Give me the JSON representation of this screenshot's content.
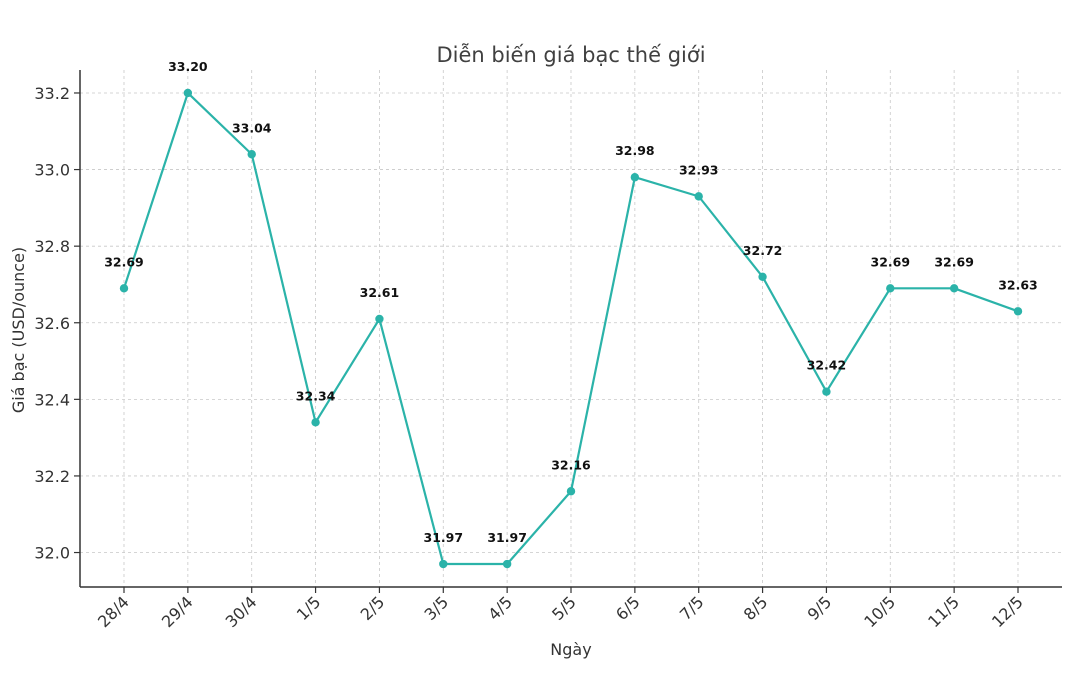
{
  "chart_data": {
    "type": "line",
    "title": "Diễn biến giá bạc thế giới",
    "xlabel": "Ngày",
    "ylabel": "Giá bạc (USD/ounce)",
    "categories": [
      "28/4",
      "29/4",
      "30/4",
      "1/5",
      "2/5",
      "3/5",
      "4/5",
      "5/5",
      "6/5",
      "7/5",
      "8/5",
      "9/5",
      "10/5",
      "11/5",
      "12/5"
    ],
    "series": [
      {
        "values": [
          32.69,
          33.2,
          33.04,
          32.34,
          32.61,
          31.97,
          31.97,
          32.16,
          32.98,
          32.93,
          32.72,
          32.42,
          32.69,
          32.69,
          32.63
        ],
        "labels": [
          "32.69",
          "33.20",
          "33.04",
          "32.34",
          "32.61",
          "31.97",
          "31.97",
          "32.16",
          "32.98",
          "32.93",
          "32.72",
          "32.42",
          "32.69",
          "32.69",
          "32.63"
        ],
        "color": "#2bb3a9"
      }
    ],
    "yticks": [
      "32.0",
      "32.2",
      "32.4",
      "32.6",
      "32.8",
      "33.0",
      "33.2"
    ],
    "ylim": [
      31.91,
      33.26
    ],
    "grid": true
  }
}
